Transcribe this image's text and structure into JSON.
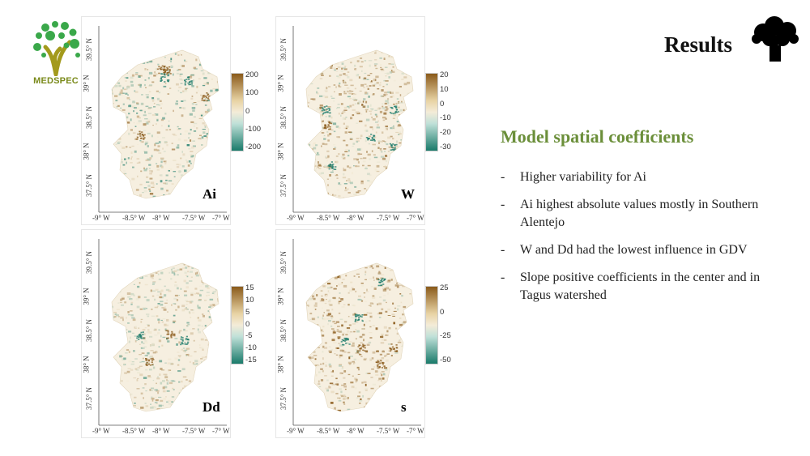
{
  "logo": {
    "text": "MEDSPEC",
    "icon": "tree-logo-icon"
  },
  "header": {
    "title": "Results",
    "icon": "tree-icon"
  },
  "maps": [
    {
      "label": "Ai",
      "legend_ticks": [
        "200",
        "100",
        "0",
        "-100",
        "-200"
      ],
      "scale": [
        -200,
        200
      ]
    },
    {
      "label": "W",
      "legend_ticks": [
        "20",
        "10",
        "0",
        "-10",
        "-20",
        "-30"
      ],
      "scale": [
        -30,
        20
      ]
    },
    {
      "label": "Dd",
      "legend_ticks": [
        "15",
        "10",
        "5",
        "0",
        "-5",
        "-10",
        "-15"
      ],
      "scale": [
        -15,
        15
      ]
    },
    {
      "label": "s",
      "legend_ticks": [
        "25",
        "0",
        "-25",
        "-50"
      ],
      "scale": [
        -50,
        25
      ]
    }
  ],
  "axes": {
    "x_ticks": [
      "-9° W",
      "-8.5° W",
      "-8° W",
      "-7.5° W",
      "-7° W"
    ],
    "y_ticks": [
      "39.5° N",
      "39° N",
      "38.5° N",
      "38° N",
      "37.5° N"
    ]
  },
  "colors": {
    "positive": "#8a5a1a",
    "neutral": "#f4ecd8",
    "negative": "#1a7a6a",
    "heading": "#6b8f3a"
  },
  "content": {
    "heading": "Model spatial coefficients",
    "bullets": [
      "Higher variability for Ai",
      "Ai highest absolute values mostly in Southern Alentejo",
      "W and Dd had the lowest influence in GDV",
      "Slope positive coefficients in the center and in Tagus watershed"
    ]
  }
}
